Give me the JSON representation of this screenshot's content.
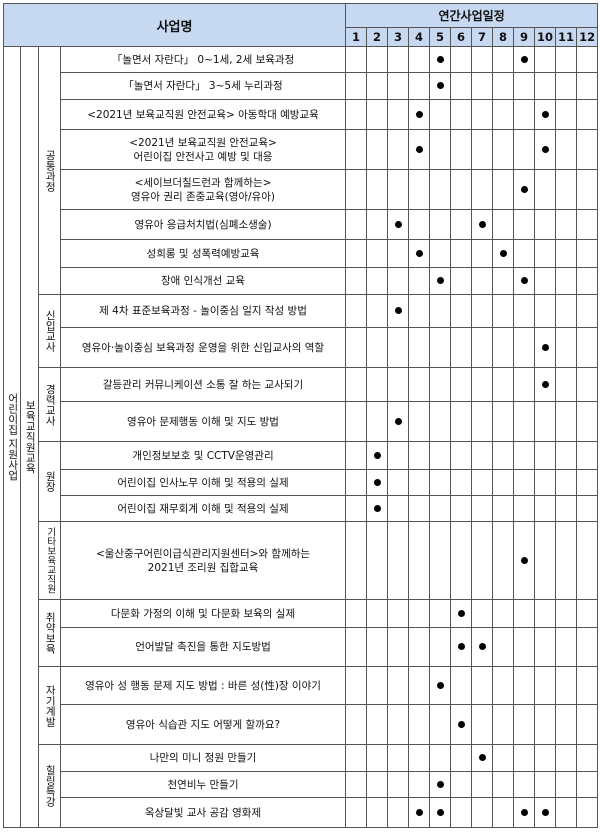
{
  "header": {
    "name": "사업명",
    "schedule": "연간사업일정",
    "months": [
      1,
      2,
      3,
      4,
      5,
      6,
      7,
      8,
      9,
      10,
      11,
      12
    ]
  },
  "category": "어린이집 지원사업",
  "subcategory": "보육교직원교육",
  "groups": [
    {
      "label": "공통과정",
      "rows": [
        {
          "name": [
            "「놀면서 자란다」 0~1세, 2세 보육과정"
          ],
          "months": [
            5,
            9
          ]
        },
        {
          "name": [
            "「놀면서 자란다」 3~5세 누리과정"
          ],
          "months": [
            5
          ]
        },
        {
          "name": [
            "<2021년 보육교직원 안전교육> 아동학대 예방교육"
          ],
          "months": [
            4,
            10
          ]
        },
        {
          "name": [
            "<2021년 보육교직원 안전교육>",
            "어린이집 안전사고 예방 및 대응"
          ],
          "months": [
            4,
            10
          ]
        },
        {
          "name": [
            "<세이브더칠드런과 함께하는>",
            "영유아 권리 존중교육(영아/유아)"
          ],
          "months": [
            9
          ]
        },
        {
          "name": [
            "영유아 응급처치법(심폐소생술)"
          ],
          "months": [
            3,
            7
          ]
        },
        {
          "name": [
            "성희롱 및 성폭력예방교육"
          ],
          "months": [
            4,
            8
          ]
        },
        {
          "name": [
            "장애 인식개선 교육"
          ],
          "months": [
            5,
            9
          ]
        }
      ]
    },
    {
      "label": "신입교사",
      "rows": [
        {
          "name": [
            "제 4차 표준보육과정 - 놀이중심 일지 작성 방법"
          ],
          "months": [
            3
          ]
        },
        {
          "name": [
            "영유아·놀이중심 보육과정 운영을 위한 신입교사의 역할"
          ],
          "months": [
            10
          ]
        }
      ]
    },
    {
      "label": "경력교사",
      "rows": [
        {
          "name": [
            "갈등관리 커뮤니케이션 소통 잘 하는 교사되기"
          ],
          "months": [
            10
          ]
        },
        {
          "name": [
            "영유아 문제행동 이해 및 지도 방법"
          ],
          "months": [
            3
          ]
        }
      ]
    },
    {
      "label": "원장",
      "rows": [
        {
          "name": [
            "개인정보보호 및 CCTV운영관리"
          ],
          "months": [
            2
          ]
        },
        {
          "name": [
            "어린이집 인사노무 이해 및 적용의 실제"
          ],
          "months": [
            2
          ]
        },
        {
          "name": [
            "어린이집 재무회계 이해 및 적용의 실제"
          ],
          "months": [
            2
          ]
        }
      ]
    },
    {
      "label": "기타보육교직원",
      "rows": [
        {
          "name": [
            "<울산중구어린이급식관리지원센터>와 함께하는",
            "2021년 조리원 집합교육"
          ],
          "months": [
            9
          ]
        }
      ]
    },
    {
      "label": "취약보육",
      "rows": [
        {
          "name": [
            "다문화 가정의 이해 및 다문화 보육의 실제"
          ],
          "months": [
            6
          ]
        },
        {
          "name": [
            "언어발달 촉진을 통한 지도방법"
          ],
          "months": [
            6,
            7
          ]
        }
      ]
    },
    {
      "label": "자기계발",
      "rows": [
        {
          "name": [
            "영유아 성 행동 문제 지도 방법 : 바른 성(性)장 이야기"
          ],
          "months": [
            5
          ]
        },
        {
          "name": [
            "영유아 식습관 지도 어떻게 할까요?"
          ],
          "months": [
            6
          ]
        }
      ]
    },
    {
      "label": "힐링특강",
      "rows": [
        {
          "name": [
            "나만의 미니 정원 만들기"
          ],
          "months": [
            7
          ]
        },
        {
          "name": [
            "천연비누 만들기"
          ],
          "months": [
            5
          ]
        },
        {
          "name": [
            "옥상달빛 교사 공감 영화제"
          ],
          "months": [
            4,
            5,
            9,
            10
          ]
        }
      ]
    }
  ]
}
